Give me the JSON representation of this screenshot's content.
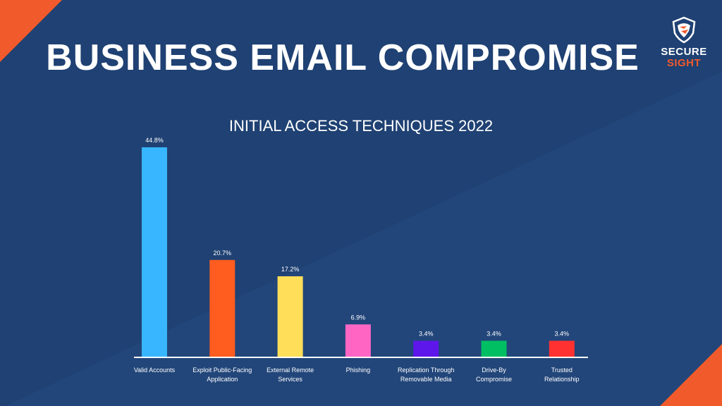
{
  "header": {
    "title": "BUSINESS EMAIL COMPROMISE",
    "logo_line1": "SECURE",
    "logo_line2": "SIGHT"
  },
  "colors": {
    "background": "#1f4173",
    "accent": "#f15a2b"
  },
  "chart_data": {
    "type": "bar",
    "title": "INITIAL ACCESS TECHNIQUES 2022",
    "xlabel": "",
    "ylabel": "",
    "ylim": [
      0,
      44.8
    ],
    "grid": false,
    "categories": [
      [
        "Valid Accounts"
      ],
      [
        "Exploit Public-Facing",
        "Application"
      ],
      [
        "External Remote",
        "Services"
      ],
      [
        "Phishing"
      ],
      [
        "Replication Through",
        "Removable Media"
      ],
      [
        "Drive-By",
        "Compromise"
      ],
      [
        "Trusted",
        "Relationship"
      ]
    ],
    "values": [
      44.8,
      20.7,
      17.2,
      6.9,
      3.4,
      3.4,
      3.4
    ],
    "data_labels": [
      "44.8%",
      "20.7%",
      "17.2%",
      "6.9%",
      "3.4%",
      "3.4%",
      "3.4%"
    ],
    "bar_colors": [
      "#38b6ff",
      "#ff5c1f",
      "#ffde59",
      "#ff66c4",
      "#5e17eb",
      "#00bf63",
      "#ff3131"
    ]
  }
}
